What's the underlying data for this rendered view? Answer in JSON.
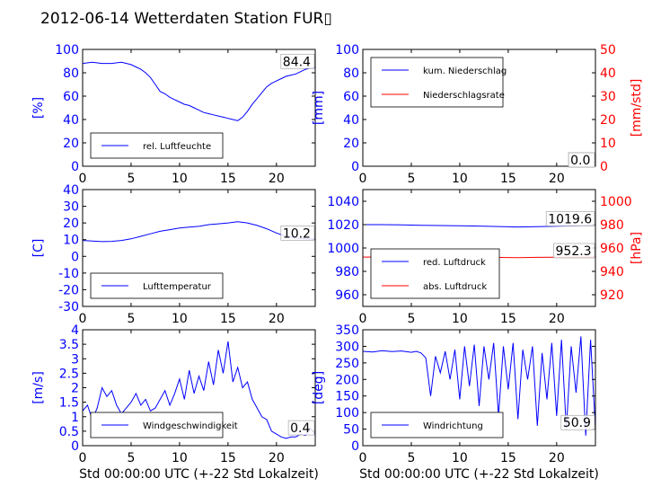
{
  "figure": {
    "title": "2012-06-14 Wetterdaten Station FUR▯"
  },
  "colors": {
    "blue": "#0000ff",
    "red": "#ff0000",
    "black": "#000000"
  },
  "chart_data": [
    {
      "type": "line",
      "xlim": [
        0,
        24
      ],
      "ylim": [
        0,
        100
      ],
      "xticks": [
        0,
        5,
        10,
        15,
        20
      ],
      "yticks": [
        0,
        20,
        40,
        60,
        80,
        100
      ],
      "ylabel": "[%]",
      "legend_loc": "lower-left",
      "last_value": "84.4",
      "series": [
        {
          "name": "rel. Luftfeuchte",
          "color": "#0000ff",
          "x": [
            0,
            1,
            2,
            3,
            4,
            5,
            5.5,
            6,
            6.5,
            7,
            7.5,
            8,
            8.5,
            9,
            9.5,
            10,
            10.5,
            11,
            11.5,
            12,
            12.5,
            13,
            13.5,
            14,
            14.5,
            15,
            15.5,
            16,
            16.5,
            17,
            17.5,
            18,
            18.5,
            19,
            19.5,
            20,
            20.5,
            21,
            21.5,
            22,
            22.5,
            23,
            23.5,
            24
          ],
          "y": [
            88,
            89,
            88,
            88,
            89,
            87,
            85,
            83,
            80,
            76,
            70,
            64,
            62,
            59,
            57,
            55,
            53,
            52,
            50,
            48,
            46,
            45,
            44,
            43,
            42,
            41,
            40,
            39,
            42,
            47,
            53,
            58,
            63,
            68,
            71,
            73,
            75,
            77,
            78,
            79,
            81,
            83,
            84,
            84.4
          ]
        }
      ]
    },
    {
      "type": "line",
      "xlim": [
        0,
        24
      ],
      "ylim": [
        0,
        100
      ],
      "y2lim": [
        0,
        50
      ],
      "xticks": [
        0,
        5,
        10,
        15,
        20
      ],
      "yticks": [
        0,
        20,
        40,
        60,
        80,
        100
      ],
      "y2ticks": [
        0,
        10,
        20,
        30,
        40,
        50
      ],
      "ylabel": "[mm]",
      "y2label": "[mm/std]",
      "legend_loc": "upper-left",
      "last_value": "0.0",
      "last_value2": "0.0",
      "series": [
        {
          "name": "kum. Niederschlag",
          "color": "#0000ff",
          "axis": "left",
          "x": [
            0,
            24
          ],
          "y": [
            0,
            0
          ]
        },
        {
          "name": "Niederschlagsrate",
          "color": "#ff0000",
          "axis": "right",
          "x": [
            0,
            24
          ],
          "y": [
            0,
            0
          ]
        }
      ]
    },
    {
      "type": "line",
      "xlim": [
        0,
        24
      ],
      "ylim": [
        -30,
        40
      ],
      "xticks": [
        0,
        5,
        10,
        15,
        20
      ],
      "yticks": [
        -30,
        -20,
        -10,
        0,
        10,
        20,
        30,
        40
      ],
      "ylabel": "[C]",
      "legend_loc": "lower-left",
      "last_value": "10.2",
      "series": [
        {
          "name": "Lufttemperatur",
          "color": "#0000ff",
          "x": [
            0,
            1,
            2,
            3,
            4,
            5,
            6,
            7,
            8,
            9,
            10,
            11,
            12,
            13,
            14,
            15,
            16,
            17,
            18,
            19,
            20,
            21,
            22,
            23,
            24
          ],
          "y": [
            9.5,
            9.2,
            8.8,
            9,
            9.5,
            10.5,
            12,
            13.5,
            15,
            16,
            17,
            17.5,
            18,
            19,
            19.5,
            20,
            20.8,
            20,
            18.5,
            16.5,
            14,
            12,
            11,
            10.5,
            10.2
          ]
        }
      ]
    },
    {
      "type": "line",
      "xlim": [
        0,
        24
      ],
      "ylim": [
        950,
        1050
      ],
      "y2lim": [
        910,
        1010
      ],
      "xticks": [
        0,
        5,
        10,
        15,
        20
      ],
      "yticks": [
        960,
        980,
        1000,
        1020,
        1040
      ],
      "y2ticks": [
        920,
        940,
        960,
        980,
        1000
      ],
      "y2label": "[hPa]",
      "legend_loc": "lower-left",
      "last_value": "1019.6",
      "last_value2": "952.3",
      "series": [
        {
          "name": "red. Luftdruck",
          "color": "#0000ff",
          "axis": "left",
          "x": [
            0,
            2,
            4,
            6,
            8,
            10,
            12,
            14,
            16,
            18,
            20,
            22,
            24
          ],
          "y": [
            1020,
            1020,
            1019.8,
            1019.5,
            1019.2,
            1019,
            1018.8,
            1018.4,
            1018,
            1018.2,
            1018.6,
            1019,
            1019.6
          ]
        },
        {
          "name": "abs. Luftdruck",
          "color": "#ff0000",
          "axis": "right",
          "x": [
            0,
            2,
            4,
            6,
            8,
            10,
            12,
            14,
            16,
            18,
            20,
            22,
            24
          ],
          "y": [
            952.2,
            952.3,
            952.5,
            952.6,
            952.4,
            952.2,
            952,
            951.9,
            951.8,
            952,
            952.1,
            952.2,
            952.3
          ]
        }
      ]
    },
    {
      "type": "line",
      "xlim": [
        0,
        24
      ],
      "ylim": [
        0,
        4
      ],
      "xticks": [
        0,
        5,
        10,
        15,
        20
      ],
      "yticks": [
        0,
        0.5,
        1,
        1.5,
        2,
        2.5,
        3,
        3.5,
        4
      ],
      "ylabel": "[m/s]",
      "xlabel": "Std 00:00:00 UTC (+-22 Std Lokalzeit)",
      "legend_loc": "lower-left",
      "last_value": "0.4",
      "series": [
        {
          "name": "Windgeschwindigkeit",
          "color": "#0000ff",
          "x": [
            0,
            0.5,
            1,
            1.5,
            2,
            2.5,
            3,
            3.5,
            4,
            4.5,
            5,
            5.5,
            6,
            6.5,
            7,
            7.5,
            8,
            8.5,
            9,
            9.5,
            10,
            10.5,
            11,
            11.5,
            12,
            12.5,
            13,
            13.5,
            14,
            14.5,
            15,
            15.5,
            16,
            16.5,
            17,
            17.5,
            18,
            18.5,
            19,
            19.5,
            20,
            20.5,
            21,
            21.5,
            22,
            22.5,
            23,
            23.5,
            24
          ],
          "y": [
            1.2,
            1.4,
            0.9,
            1.3,
            2,
            1.7,
            1.9,
            1.4,
            1.1,
            1.3,
            1.5,
            1.8,
            1.4,
            1.6,
            1.2,
            1.3,
            1.6,
            1.9,
            1.4,
            1.8,
            2.3,
            1.6,
            2.6,
            1.8,
            2.4,
            1.9,
            2.9,
            2.1,
            3.3,
            2.5,
            3.6,
            2.2,
            2.7,
            2,
            2.2,
            1.6,
            1.3,
            1,
            0.9,
            0.5,
            0.4,
            0.3,
            0.25,
            0.3,
            0.3,
            0.4,
            0.35,
            0.6,
            0.4
          ]
        }
      ]
    },
    {
      "type": "line",
      "xlim": [
        0,
        24
      ],
      "ylim": [
        0,
        350
      ],
      "xticks": [
        0,
        5,
        10,
        15,
        20
      ],
      "yticks": [
        0,
        50,
        100,
        150,
        200,
        250,
        300,
        350
      ],
      "ylabel": "[deg]",
      "xlabel": "Std 00:00:00 UTC (+-22 Std Lokalzeit)",
      "legend_loc": "lower-left",
      "last_value": "50.9",
      "series": [
        {
          "name": "Windrichtung",
          "color": "#0000ff",
          "x": [
            0,
            1,
            2,
            3,
            4,
            5,
            5.5,
            6,
            6.5,
            7,
            7.5,
            8,
            8.5,
            9,
            9.5,
            10,
            10.5,
            11,
            11.5,
            12,
            12.5,
            13,
            13.5,
            14,
            14.5,
            15,
            15.5,
            16,
            16.5,
            17,
            17.5,
            18,
            18.5,
            19,
            19.5,
            20,
            20.5,
            21,
            21.5,
            22,
            22.5,
            23,
            23.5,
            24
          ],
          "y": [
            285,
            283,
            287,
            284,
            286,
            282,
            285,
            280,
            265,
            150,
            270,
            220,
            285,
            200,
            290,
            140,
            300,
            180,
            305,
            120,
            300,
            200,
            310,
            90,
            300,
            170,
            310,
            80,
            290,
            200,
            300,
            60,
            280,
            140,
            310,
            90,
            320,
            50,
            300,
            160,
            330,
            30,
            320,
            50.9
          ]
        }
      ]
    }
  ]
}
